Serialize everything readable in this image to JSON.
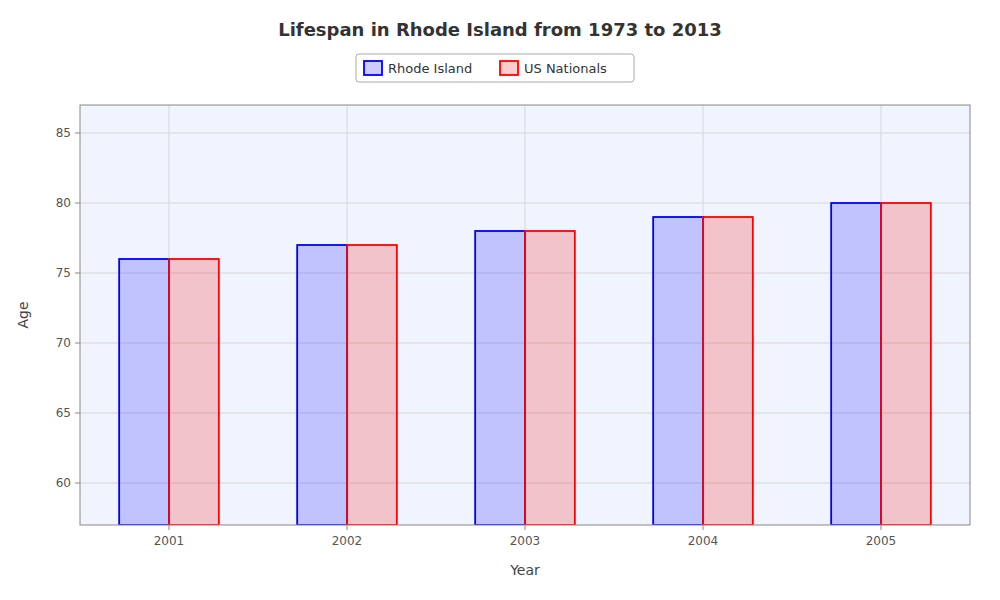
{
  "chart_data": {
    "type": "bar",
    "title": "Lifespan in Rhode Island from 1973 to 2013",
    "x_label": "Year",
    "y_label": "Age",
    "categories": [
      "2001",
      "2002",
      "2003",
      "2004",
      "2005"
    ],
    "series": [
      {
        "name": "Rhode Island",
        "color": "#0000ff",
        "values": [
          76,
          77,
          78,
          79,
          80
        ]
      },
      {
        "name": "US Nationals",
        "color": "#ff0000",
        "values": [
          76,
          77,
          78,
          79,
          80
        ]
      }
    ],
    "ylim": [
      57,
      87
    ],
    "yticks": [
      60,
      65,
      70,
      75,
      80,
      85
    ],
    "grid": true,
    "legend": "top"
  }
}
